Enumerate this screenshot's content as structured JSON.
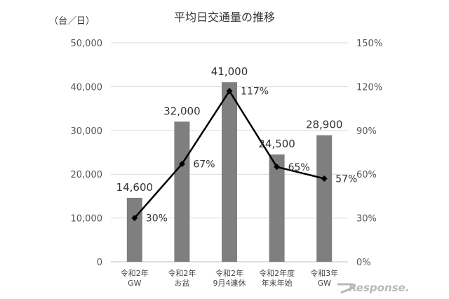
{
  "chart_data": {
    "type": "bar",
    "title": "平均日交通量の推移",
    "y_unit_label": "（台／日）",
    "categories": [
      [
        "令和2年",
        "GW"
      ],
      [
        "令和2年",
        "お盆"
      ],
      [
        "令和2年",
        "9月4連休"
      ],
      [
        "令和2年度",
        "年末年始"
      ],
      [
        "令和3年",
        "GW"
      ]
    ],
    "series": [
      {
        "type": "bar",
        "values": [
          14600,
          32000,
          41000,
          24500,
          28900
        ],
        "labels": [
          "14,600",
          "32,000",
          "41,000",
          "24,500",
          "28,900"
        ],
        "color": "#7f7f7f",
        "axis": "left"
      },
      {
        "type": "line",
        "values": [
          30,
          67,
          117,
          65,
          57
        ],
        "labels": [
          "30%",
          "67%",
          "117%",
          "65%",
          "57%"
        ],
        "color": "#000000",
        "axis": "right"
      }
    ],
    "ylim": [
      0,
      50000
    ],
    "y_ticks": [
      "0",
      "10,000",
      "20,000",
      "30,000",
      "40,000",
      "50,000"
    ],
    "y2lim": [
      0,
      150
    ],
    "y2_ticks": [
      "0%",
      "30%",
      "60%",
      "90%",
      "120%",
      "150%"
    ],
    "grid": true,
    "legend": "none"
  },
  "watermark": "Response."
}
